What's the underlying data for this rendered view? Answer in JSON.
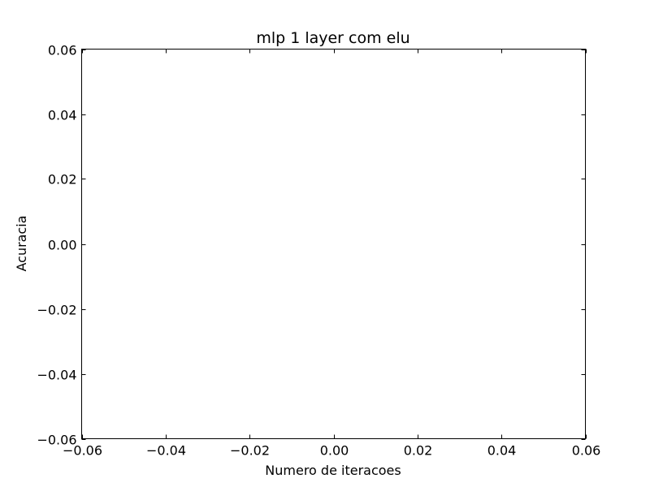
{
  "chart_data": {
    "type": "line",
    "title": "mlp 1 layer com elu",
    "xlabel": "Numero de iteracoes",
    "ylabel": "Acuracia",
    "xlim": [
      -0.06,
      0.06
    ],
    "ylim": [
      -0.06,
      0.06
    ],
    "x_ticks": [
      "−0.06",
      "−0.04",
      "−0.02",
      "0.00",
      "0.02",
      "0.04",
      "0.06"
    ],
    "y_ticks": [
      "−0.06",
      "−0.04",
      "−0.02",
      "0.00",
      "0.02",
      "0.04",
      "0.06"
    ],
    "series": [],
    "grid": false,
    "legend": "none"
  }
}
